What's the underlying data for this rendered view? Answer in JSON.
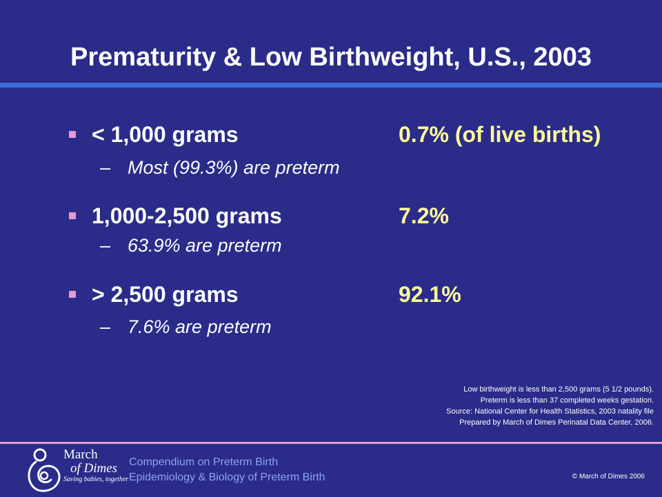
{
  "slide": {
    "title": "Prematurity & Low Birthweight, U.S., 2003"
  },
  "items": [
    {
      "label": "< 1,000 grams",
      "value": "0.7% (of live births)",
      "sub": "Most (99.3%) are preterm"
    },
    {
      "label": "1,000-2,500 grams",
      "value": "7.2%",
      "sub": "63.9% are preterm"
    },
    {
      "label": "> 2,500 grams",
      "value": "92.1%",
      "sub": "7.6% are preterm"
    }
  ],
  "sub_dash": "–",
  "notes": [
    "Low birthweight is less than 2,500 grams (5 1/2 pounds).",
    "Preterm is less than 37 completed weeks gestation.",
    "Source: National Center for Health Statistics, 2003 natality file",
    "Prepared by March of Dimes Perinatal Data Center, 2006."
  ],
  "footer": {
    "logo_line1": "March",
    "logo_line2": "of Dimes",
    "logo_tagline": "Saving babies, together",
    "compendium_line1": "Compendium on Preterm Birth",
    "compendium_line2": "Epidemiology & Biology of Preterm Birth",
    "copyright": "© March of Dimes 2006"
  },
  "colors": {
    "background": "#2b2b8a",
    "title_rule": "#3a6fd8",
    "value_text": "#ffff99",
    "bullet": "#e89ad0"
  }
}
